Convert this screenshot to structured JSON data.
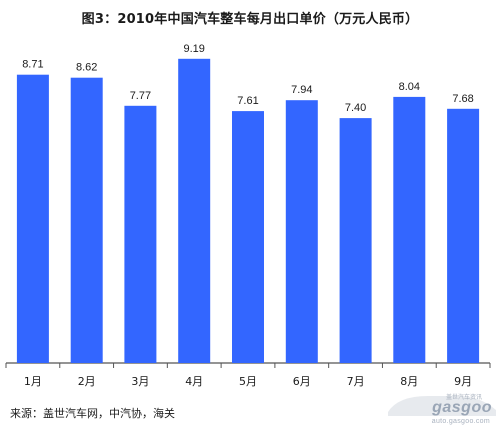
{
  "chart_data": {
    "type": "bar",
    "title": "图3：2010年中国汽车整车每月出口单价（万元人民币）",
    "categories": [
      "1月",
      "2月",
      "3月",
      "4月",
      "5月",
      "6月",
      "7月",
      "8月",
      "9月"
    ],
    "values": [
      8.71,
      8.62,
      7.77,
      9.19,
      7.61,
      7.94,
      7.4,
      8.04,
      7.68
    ],
    "value_labels": [
      "8.71",
      "8.62",
      "7.77",
      "9.19",
      "7.61",
      "7.94",
      "7.40",
      "8.04",
      "7.68"
    ],
    "ylim": [
      0,
      10
    ],
    "grid": false,
    "legend": "none",
    "bar_color": "#3366ff",
    "axis_color": "#555555"
  },
  "source": "来源：盖世汽车网，中汽协，海关",
  "watermark": {
    "top": "盖世汽车资讯",
    "main": "gasgoo",
    "sub": "auto.gasgoo.com"
  }
}
